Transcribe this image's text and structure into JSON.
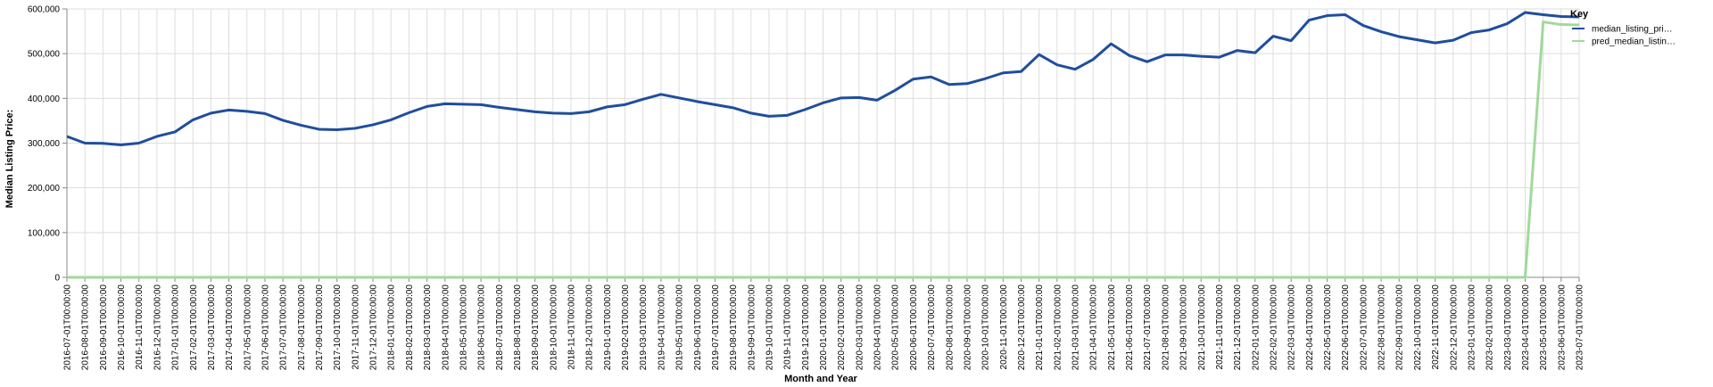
{
  "chart_data": {
    "type": "line",
    "xlabel": "Month and Year",
    "ylabel": "Median Listing Price:",
    "ylim": [
      0,
      600000
    ],
    "yticks": [
      "0",
      "100,000",
      "200,000",
      "300,000",
      "400,000",
      "500,000",
      "600,000"
    ],
    "grid": true,
    "legend_title": "Key",
    "legend_position": "top-right",
    "categories": [
      "2016-07-01T00:00:00",
      "2016-08-01T00:00:00",
      "2016-09-01T00:00:00",
      "2016-10-01T00:00:00",
      "2016-11-01T00:00:00",
      "2016-12-01T00:00:00",
      "2017-01-01T00:00:00",
      "2017-02-01T00:00:00",
      "2017-03-01T00:00:00",
      "2017-04-01T00:00:00",
      "2017-05-01T00:00:00",
      "2017-06-01T00:00:00",
      "2017-07-01T00:00:00",
      "2017-08-01T00:00:00",
      "2017-09-01T00:00:00",
      "2017-10-01T00:00:00",
      "2017-11-01T00:00:00",
      "2017-12-01T00:00:00",
      "2018-01-01T00:00:00",
      "2018-02-01T00:00:00",
      "2018-03-01T00:00:00",
      "2018-04-01T00:00:00",
      "2018-05-01T00:00:00",
      "2018-06-01T00:00:00",
      "2018-07-01T00:00:00",
      "2018-08-01T00:00:00",
      "2018-09-01T00:00:00",
      "2018-10-01T00:00:00",
      "2018-11-01T00:00:00",
      "2018-12-01T00:00:00",
      "2019-01-01T00:00:00",
      "2019-02-01T00:00:00",
      "2019-03-01T00:00:00",
      "2019-04-01T00:00:00",
      "2019-05-01T00:00:00",
      "2019-06-01T00:00:00",
      "2019-07-01T00:00:00",
      "2019-08-01T00:00:00",
      "2019-09-01T00:00:00",
      "2019-10-01T00:00:00",
      "2019-11-01T00:00:00",
      "2019-12-01T00:00:00",
      "2020-01-01T00:00:00",
      "2020-02-01T00:00:00",
      "2020-03-01T00:00:00",
      "2020-04-01T00:00:00",
      "2020-05-01T00:00:00",
      "2020-06-01T00:00:00",
      "2020-07-01T00:00:00",
      "2020-08-01T00:00:00",
      "2020-09-01T00:00:00",
      "2020-10-01T00:00:00",
      "2020-11-01T00:00:00",
      "2020-12-01T00:00:00",
      "2021-01-01T00:00:00",
      "2021-02-01T00:00:00",
      "2021-03-01T00:00:00",
      "2021-04-01T00:00:00",
      "2021-05-01T00:00:00",
      "2021-06-01T00:00:00",
      "2021-07-01T00:00:00",
      "2021-08-01T00:00:00",
      "2021-09-01T00:00:00",
      "2021-10-01T00:00:00",
      "2021-11-01T00:00:00",
      "2021-12-01T00:00:00",
      "2022-01-01T00:00:00",
      "2022-02-01T00:00:00",
      "2022-03-01T00:00:00",
      "2022-04-01T00:00:00",
      "2022-05-01T00:00:00",
      "2022-06-01T00:00:00",
      "2022-07-01T00:00:00",
      "2022-08-01T00:00:00",
      "2022-09-01T00:00:00",
      "2022-10-01T00:00:00",
      "2022-11-01T00:00:00",
      "2022-12-01T00:00:00",
      "2023-01-01T00:00:00",
      "2023-02-01T00:00:00",
      "2023-03-01T00:00:00",
      "2023-04-01T00:00:00",
      "2023-05-01T00:00:00",
      "2023-06-01T00:00:00",
      "2023-07-01T00:00:00"
    ],
    "series": [
      {
        "name": "median_listing_price",
        "legend_label": "median_listing_pri…",
        "color": "#1f4e9c",
        "values": [
          315000,
          300000,
          299500,
          296000,
          300000,
          315000,
          325000,
          352000,
          367000,
          374000,
          371000,
          366000,
          351000,
          340000,
          331000,
          330000,
          333000,
          341000,
          352000,
          368000,
          382000,
          388000,
          387000,
          386000,
          380000,
          375000,
          370000,
          367000,
          366000,
          370000,
          381000,
          386000,
          398000,
          409000,
          401000,
          393000,
          386000,
          379000,
          367000,
          360000,
          362000,
          375000,
          390000,
          401000,
          402000,
          396000,
          418000,
          443000,
          448000,
          431000,
          433000,
          444000,
          457000,
          460000,
          498000,
          475000,
          465000,
          487000,
          522000,
          496000,
          482000,
          497000,
          497000,
          494000,
          492000,
          507000,
          502000,
          539000,
          529000,
          575000,
          585000,
          587000,
          563000,
          549000,
          538000,
          531000,
          524000,
          530000,
          547000,
          553000,
          567000,
          592000,
          587000,
          583000,
          582000
        ]
      },
      {
        "name": "pred_median_listing_price",
        "legend_label": "pred_median_listin…",
        "color": "#a1d99b",
        "values": [
          0,
          0,
          0,
          0,
          0,
          0,
          0,
          0,
          0,
          0,
          0,
          0,
          0,
          0,
          0,
          0,
          0,
          0,
          0,
          0,
          0,
          0,
          0,
          0,
          0,
          0,
          0,
          0,
          0,
          0,
          0,
          0,
          0,
          0,
          0,
          0,
          0,
          0,
          0,
          0,
          0,
          0,
          0,
          0,
          0,
          0,
          0,
          0,
          0,
          0,
          0,
          0,
          0,
          0,
          0,
          0,
          0,
          0,
          0,
          0,
          0,
          0,
          0,
          0,
          0,
          0,
          0,
          0,
          0,
          0,
          0,
          0,
          0,
          0,
          0,
          0,
          0,
          0,
          0,
          0,
          0,
          0,
          571000,
          565000,
          564000
        ]
      }
    ]
  }
}
